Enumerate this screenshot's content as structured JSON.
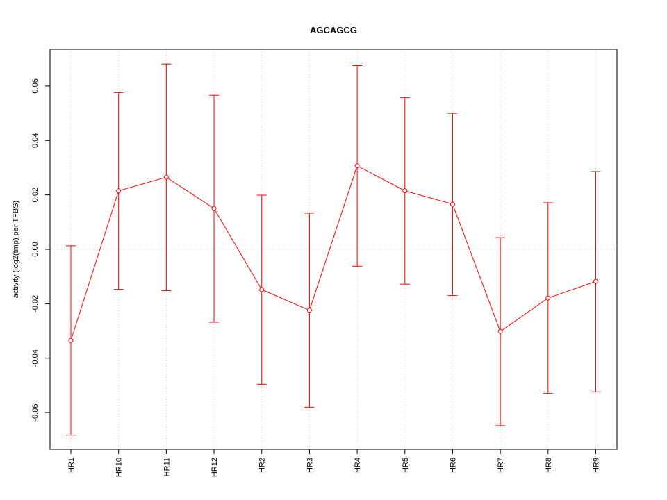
{
  "chart_data": {
    "type": "line",
    "title": "AGCAGCG",
    "xlabel": "",
    "ylabel": "activity (log2(tmp) per TFBS)",
    "categories": [
      "HR1",
      "HR10",
      "HR11",
      "HR12",
      "HR2",
      "HR3",
      "HR4",
      "HR5",
      "HR6",
      "HR7",
      "HR8",
      "HR9"
    ],
    "series": [
      {
        "values": [
          -0.0335,
          0.0215,
          0.0265,
          0.015,
          -0.0148,
          -0.0224,
          0.0307,
          0.0215,
          0.0166,
          -0.0302,
          -0.0179,
          -0.0118
        ],
        "upper": [
          0.0013,
          0.0576,
          0.0681,
          0.0566,
          0.0199,
          0.0133,
          0.0675,
          0.0558,
          0.05,
          0.0043,
          0.0171,
          0.0286
        ],
        "lower": [
          -0.0683,
          -0.0147,
          -0.0152,
          -0.0268,
          -0.0496,
          -0.058,
          -0.0062,
          -0.0128,
          -0.017,
          -0.0648,
          -0.053,
          -0.0524
        ]
      }
    ],
    "yticks": [
      -0.06,
      -0.04,
      -0.02,
      0.0,
      0.02,
      0.04,
      0.06
    ],
    "ytick_labels": [
      "-0.06",
      "-0.04",
      "-0.02",
      "0.00",
      "0.02",
      "0.04",
      "0.06"
    ],
    "ylim": [
      -0.0735,
      0.0735
    ],
    "grid": true,
    "reference_line": 0,
    "color": "#ff0000",
    "grid_color": "#d3d3d3"
  }
}
